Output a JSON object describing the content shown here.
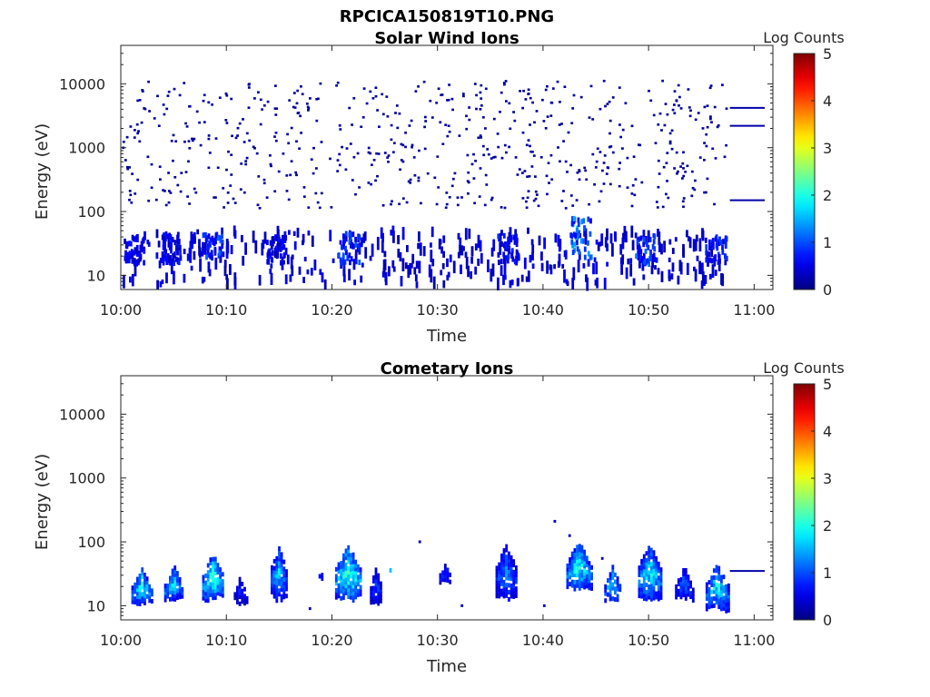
{
  "figure_title": "RPCICA150819T10.PNG",
  "chart_data": [
    {
      "type": "heatmap",
      "title": "Solar Wind Ions",
      "xlabel": "Time",
      "ylabel": "Energy (eV)",
      "y_scale": "log",
      "ylim": [
        6,
        40000
      ],
      "x_ticks": [
        "10:00",
        "10:10",
        "10:20",
        "10:30",
        "10:40",
        "10:50",
        "11:00"
      ],
      "y_ticks": [
        "10",
        "100",
        "1000",
        "10000"
      ],
      "colorbar": {
        "label": "Log Counts",
        "range": [
          0,
          5
        ],
        "ticks": [
          "0",
          "1",
          "2",
          "3",
          "4",
          "5"
        ],
        "colormap": "jet"
      },
      "dense_bursts": [
        {
          "t": 1.2,
          "e_lo": 15,
          "e_hi": 40,
          "v": 0.6
        },
        {
          "t": 4.6,
          "e_lo": 15,
          "e_hi": 45,
          "v": 0.7
        },
        {
          "t": 8.6,
          "e_lo": 18,
          "e_hi": 45,
          "v": 1.0
        },
        {
          "t": 14.7,
          "e_lo": 15,
          "e_hi": 40,
          "v": 0.6
        },
        {
          "t": 21.5,
          "e_lo": 15,
          "e_hi": 45,
          "v": 0.9
        },
        {
          "t": 36.6,
          "e_lo": 15,
          "e_hi": 45,
          "v": 0.7
        },
        {
          "t": 43.5,
          "e_lo": 18,
          "e_hi": 80,
          "v": 1.3
        },
        {
          "t": 49.7,
          "e_lo": 15,
          "e_hi": 45,
          "v": 1.0
        },
        {
          "t": 56.3,
          "e_lo": 15,
          "e_hi": 40,
          "v": 0.8
        }
      ],
      "flat_lines": [
        {
          "t_start": 57.7,
          "t_end": 61.0,
          "e": 4200,
          "v": 0.2
        },
        {
          "t_start": 57.7,
          "t_end": 61.0,
          "e": 2200,
          "v": 0.2
        },
        {
          "t_start": 57.7,
          "t_end": 61.0,
          "e": 150,
          "v": 0.2
        }
      ]
    },
    {
      "type": "heatmap",
      "title": "Cometary Ions",
      "xlabel": "Time",
      "ylabel": "Energy (eV)",
      "y_scale": "log",
      "ylim": [
        6,
        40000
      ],
      "x_ticks": [
        "10:00",
        "10:10",
        "10:20",
        "10:30",
        "10:40",
        "10:50",
        "11:00"
      ],
      "y_ticks": [
        "10",
        "100",
        "1000",
        "10000"
      ],
      "colorbar": {
        "label": "Log Counts",
        "range": [
          0,
          5
        ],
        "ticks": [
          "0",
          "1",
          "2",
          "3",
          "4",
          "5"
        ],
        "colormap": "jet"
      },
      "bursts": [
        {
          "t0": 1.0,
          "t1": 2.8,
          "e_lo": 10,
          "e_hi": 40,
          "peak": 2.0
        },
        {
          "t0": 4.1,
          "t1": 5.8,
          "e_lo": 12,
          "e_hi": 42,
          "peak": 1.8
        },
        {
          "t0": 7.7,
          "t1": 9.6,
          "e_lo": 12,
          "e_hi": 65,
          "peak": 2.3
        },
        {
          "t0": 10.7,
          "t1": 11.8,
          "e_lo": 10,
          "e_hi": 30,
          "peak": 0.8
        },
        {
          "t0": 14.2,
          "t1": 15.5,
          "e_lo": 12,
          "e_hi": 85,
          "peak": 1.7
        },
        {
          "t0": 18.5,
          "t1": 19.3,
          "e_lo": 25,
          "e_hi": 40,
          "peak": 1.0
        },
        {
          "t0": 20.3,
          "t1": 22.6,
          "e_lo": 12,
          "e_hi": 85,
          "peak": 2.4
        },
        {
          "t0": 23.6,
          "t1": 24.6,
          "e_lo": 10,
          "e_hi": 40,
          "peak": 1.0
        },
        {
          "t0": 25.2,
          "t1": 25.7,
          "e_lo": 33,
          "e_hi": 40,
          "peak": 2.0
        },
        {
          "t0": 28.0,
          "t1": 28.6,
          "e_lo": 30,
          "e_hi": 40,
          "peak": 2.2
        },
        {
          "t0": 29.7,
          "t1": 31.7,
          "e_lo": 22,
          "e_hi": 45,
          "peak": 0.9
        },
        {
          "t0": 35.5,
          "t1": 37.3,
          "e_lo": 12,
          "e_hi": 90,
          "peak": 1.4
        },
        {
          "t0": 42.2,
          "t1": 44.4,
          "e_lo": 18,
          "e_hi": 100,
          "peak": 2.2
        },
        {
          "t0": 45.8,
          "t1": 47.2,
          "e_lo": 12,
          "e_hi": 42,
          "peak": 1.9
        },
        {
          "t0": 49.0,
          "t1": 51.0,
          "e_lo": 12,
          "e_hi": 90,
          "peak": 2.0
        },
        {
          "t0": 52.5,
          "t1": 54.0,
          "e_lo": 12,
          "e_hi": 42,
          "peak": 1.2
        },
        {
          "t0": 55.4,
          "t1": 57.4,
          "e_lo": 8,
          "e_hi": 45,
          "peak": 2.0
        }
      ],
      "flat_lines": [
        {
          "t_start": 57.7,
          "t_end": 61.0,
          "e": 35,
          "v": 0.2
        }
      ]
    }
  ]
}
